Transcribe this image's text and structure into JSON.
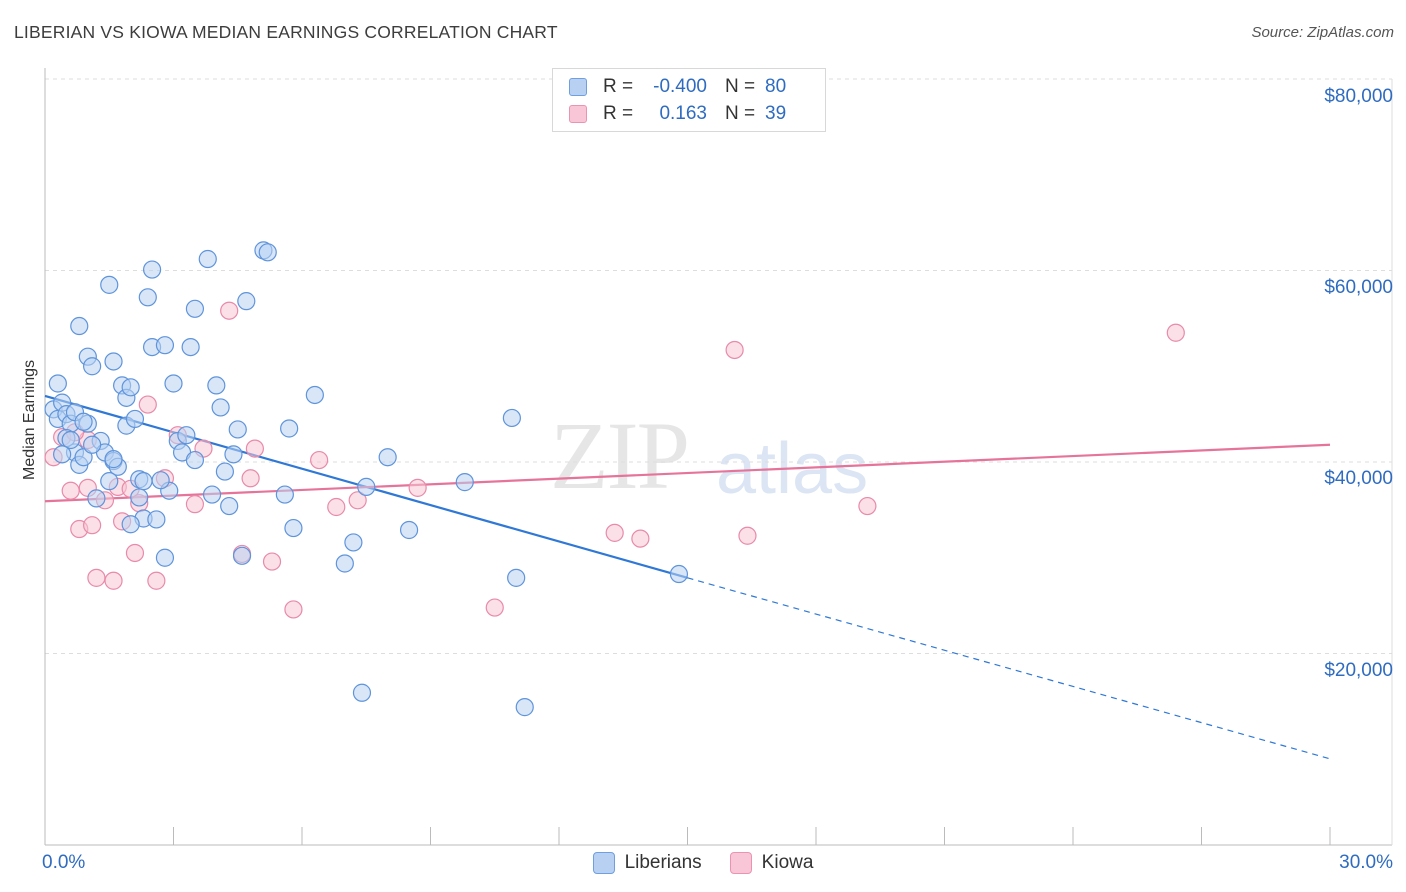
{
  "title": "LIBERIAN VS KIOWA MEDIAN EARNINGS CORRELATION CHART",
  "source": "Source: ZipAtlas.com",
  "watermark": {
    "zip": "ZIP",
    "atlas": "atlas"
  },
  "colors": {
    "blue": "#2f6cc0",
    "blue_fill": "#b8d1f3",
    "blue_line": "#2f78d6",
    "pink": "#e6749a",
    "pink_fill": "#f8c6d6",
    "grid": "#dddddd",
    "axis": "#bbbbbb"
  },
  "legend": {
    "blue": {
      "r_label": "R =",
      "r_value": "-0.400",
      "n_label": "N =",
      "n_value": "80"
    },
    "pink": {
      "r_label": "R =",
      "r_value": "0.163",
      "n_label": "N =",
      "n_value": "39"
    }
  },
  "bottom_legend": {
    "liberians": "Liberians",
    "kiowa": "Kiowa"
  },
  "axis": {
    "x_min_label": "0.0%",
    "x_max_label": "30.0%",
    "ylabel": "Median Earnings",
    "y_ticks": [
      "$80,000",
      "$60,000",
      "$40,000",
      "$20,000"
    ]
  },
  "chart_data": {
    "type": "scatter",
    "title": "LIBERIAN VS KIOWA MEDIAN EARNINGS CORRELATION CHART",
    "xlabel": "",
    "ylabel": "Median Earnings",
    "xlim": [
      0,
      30
    ],
    "ylim": [
      0,
      82000
    ],
    "y_tick_values": [
      20000,
      40000,
      60000,
      80000
    ],
    "series": [
      {
        "name": "Liberians",
        "r": -0.4,
        "n": 80,
        "trend": {
          "x0": 0,
          "y0": 46900,
          "x1": 15,
          "y1": 27900,
          "dash_x1": 30,
          "dash_y1": 9000
        },
        "points": [
          [
            0.2,
            45500
          ],
          [
            0.3,
            44500
          ],
          [
            0.4,
            46200
          ],
          [
            0.5,
            45000
          ],
          [
            0.6,
            44000
          ],
          [
            0.7,
            45200
          ],
          [
            0.3,
            48200
          ],
          [
            0.8,
            54200
          ],
          [
            1.0,
            51000
          ],
          [
            1.1,
            50000
          ],
          [
            1.5,
            58500
          ],
          [
            1.6,
            50500
          ],
          [
            0.5,
            42500
          ],
          [
            0.7,
            41000
          ],
          [
            1.0,
            44000
          ],
          [
            1.3,
            42200
          ],
          [
            1.4,
            41000
          ],
          [
            1.6,
            40100
          ],
          [
            1.7,
            39500
          ],
          [
            0.8,
            39700
          ],
          [
            1.8,
            48000
          ],
          [
            1.9,
            46700
          ],
          [
            2.0,
            47800
          ],
          [
            1.9,
            43800
          ],
          [
            2.1,
            44500
          ],
          [
            2.2,
            38200
          ],
          [
            2.3,
            38000
          ],
          [
            2.4,
            57200
          ],
          [
            2.5,
            60100
          ],
          [
            2.5,
            52000
          ],
          [
            2.8,
            52200
          ],
          [
            2.9,
            37000
          ],
          [
            3.0,
            48200
          ],
          [
            3.1,
            42200
          ],
          [
            3.2,
            41000
          ],
          [
            3.4,
            52000
          ],
          [
            3.5,
            56000
          ],
          [
            3.8,
            61200
          ],
          [
            4.0,
            48000
          ],
          [
            4.1,
            45700
          ],
          [
            4.2,
            39000
          ],
          [
            4.3,
            35400
          ],
          [
            4.5,
            43400
          ],
          [
            4.7,
            56800
          ],
          [
            5.1,
            62100
          ],
          [
            5.2,
            61900
          ],
          [
            5.6,
            36600
          ],
          [
            5.7,
            43500
          ],
          [
            5.8,
            33100
          ],
          [
            6.3,
            47000
          ],
          [
            7.0,
            29400
          ],
          [
            7.2,
            31600
          ],
          [
            7.5,
            37400
          ],
          [
            8.0,
            40500
          ],
          [
            8.5,
            32900
          ],
          [
            9.8,
            37900
          ],
          [
            10.9,
            44600
          ],
          [
            11.0,
            27900
          ],
          [
            7.4,
            15900
          ],
          [
            11.2,
            14400
          ],
          [
            14.8,
            28300
          ],
          [
            2.2,
            36300
          ],
          [
            2.3,
            34100
          ],
          [
            3.5,
            40200
          ],
          [
            1.2,
            36200
          ],
          [
            2.6,
            34000
          ],
          [
            2.8,
            30000
          ],
          [
            4.4,
            40800
          ],
          [
            4.6,
            30200
          ],
          [
            3.9,
            36600
          ],
          [
            2.0,
            33500
          ],
          [
            0.9,
            40500
          ],
          [
            1.5,
            38000
          ],
          [
            0.6,
            42300
          ],
          [
            1.1,
            41800
          ],
          [
            3.3,
            42800
          ],
          [
            2.7,
            38100
          ],
          [
            1.6,
            40300
          ],
          [
            0.4,
            40800
          ],
          [
            0.9,
            44200
          ]
        ]
      },
      {
        "name": "Kiowa",
        "r": 0.163,
        "n": 39,
        "trend": {
          "x0": 0,
          "y0": 35900,
          "x1": 30,
          "y1": 41800
        },
        "points": [
          [
            0.2,
            40500
          ],
          [
            0.4,
            42600
          ],
          [
            0.6,
            37000
          ],
          [
            0.8,
            33000
          ],
          [
            1.0,
            37300
          ],
          [
            1.1,
            33400
          ],
          [
            1.2,
            27900
          ],
          [
            1.4,
            36000
          ],
          [
            1.6,
            27600
          ],
          [
            1.7,
            37400
          ],
          [
            1.8,
            33800
          ],
          [
            2.0,
            37200
          ],
          [
            2.1,
            30500
          ],
          [
            2.2,
            35700
          ],
          [
            2.4,
            46000
          ],
          [
            2.6,
            27600
          ],
          [
            2.8,
            38300
          ],
          [
            3.1,
            42800
          ],
          [
            3.5,
            35600
          ],
          [
            3.7,
            41400
          ],
          [
            4.3,
            55800
          ],
          [
            4.6,
            30400
          ],
          [
            4.8,
            38300
          ],
          [
            4.9,
            41400
          ],
          [
            5.3,
            29600
          ],
          [
            5.8,
            24600
          ],
          [
            6.4,
            40200
          ],
          [
            6.8,
            35300
          ],
          [
            7.3,
            36000
          ],
          [
            8.7,
            37300
          ],
          [
            10.5,
            24800
          ],
          [
            13.3,
            32600
          ],
          [
            13.9,
            32000
          ],
          [
            16.1,
            51700
          ],
          [
            16.4,
            32300
          ],
          [
            19.2,
            35400
          ],
          [
            26.4,
            53500
          ],
          [
            1.0,
            42300
          ],
          [
            0.7,
            43100
          ]
        ]
      }
    ]
  }
}
